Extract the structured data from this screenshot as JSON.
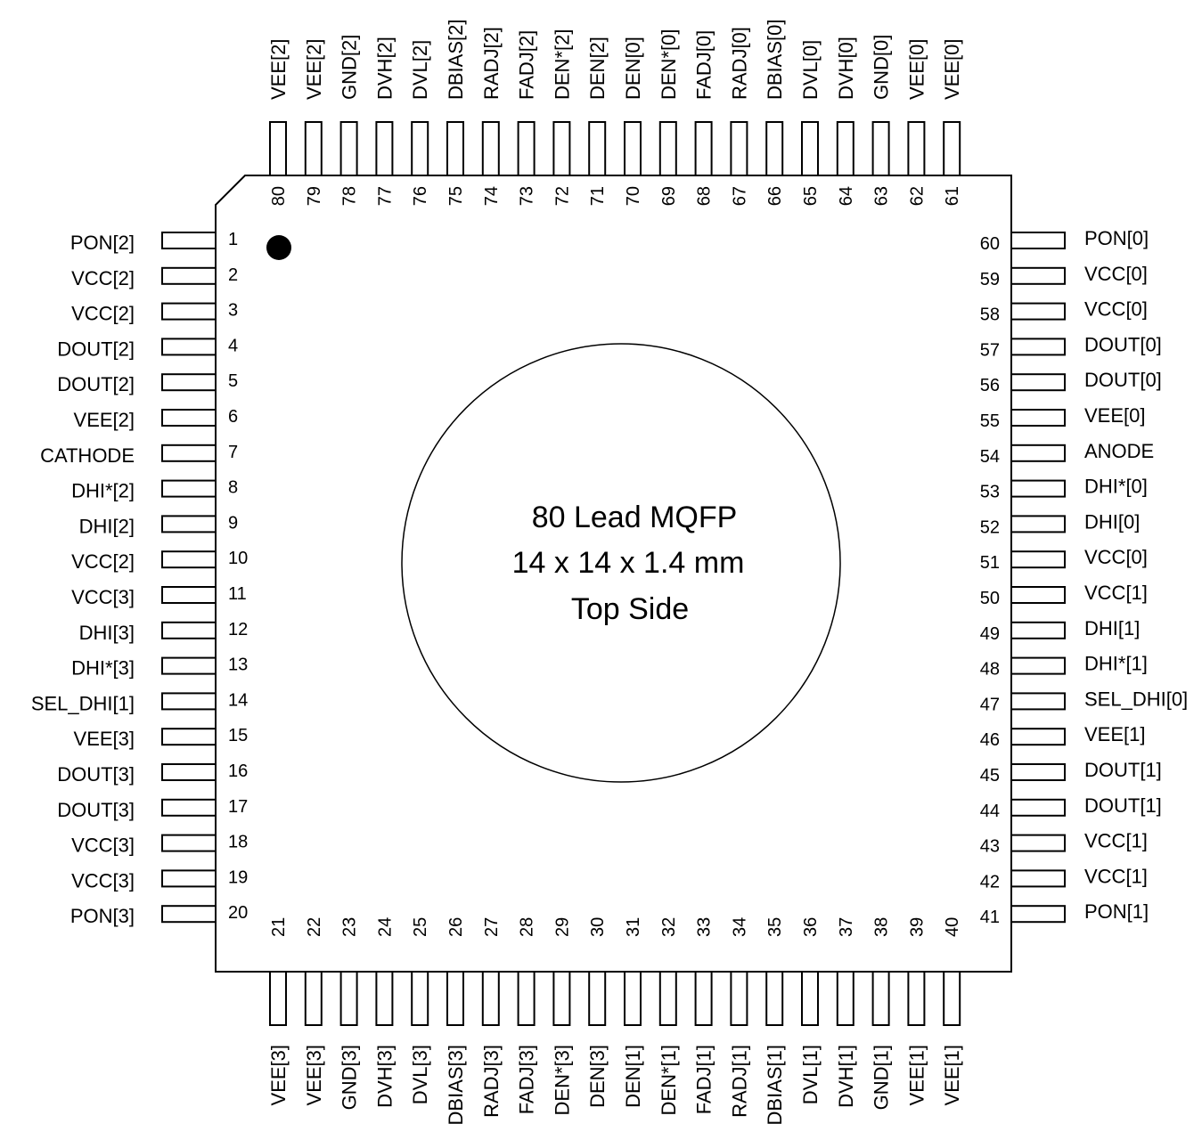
{
  "package": {
    "title_line1": "80 Lead MQFP",
    "title_line2": "14 x 14 x 1.4 mm",
    "title_line3": "Top Side"
  },
  "pins": {
    "left": [
      {
        "n": "1",
        "label": "PON[2]"
      },
      {
        "n": "2",
        "label": "VCC[2]"
      },
      {
        "n": "3",
        "label": "VCC[2]"
      },
      {
        "n": "4",
        "label": "DOUT[2]"
      },
      {
        "n": "5",
        "label": "DOUT[2]"
      },
      {
        "n": "6",
        "label": "VEE[2]"
      },
      {
        "n": "7",
        "label": "CATHODE"
      },
      {
        "n": "8",
        "label": "DHI*[2]"
      },
      {
        "n": "9",
        "label": "DHI[2]"
      },
      {
        "n": "10",
        "label": "VCC[2]"
      },
      {
        "n": "11",
        "label": "VCC[3]"
      },
      {
        "n": "12",
        "label": "DHI[3]"
      },
      {
        "n": "13",
        "label": "DHI*[3]"
      },
      {
        "n": "14",
        "label": "SEL_DHI[1]"
      },
      {
        "n": "15",
        "label": "VEE[3]"
      },
      {
        "n": "16",
        "label": "DOUT[3]"
      },
      {
        "n": "17",
        "label": "DOUT[3]"
      },
      {
        "n": "18",
        "label": "VCC[3]"
      },
      {
        "n": "19",
        "label": "VCC[3]"
      },
      {
        "n": "20",
        "label": "PON[3]"
      }
    ],
    "right": [
      {
        "n": "60",
        "label": "PON[0]"
      },
      {
        "n": "59",
        "label": "VCC[0]"
      },
      {
        "n": "58",
        "label": "VCC[0]"
      },
      {
        "n": "57",
        "label": "DOUT[0]"
      },
      {
        "n": "56",
        "label": "DOUT[0]"
      },
      {
        "n": "55",
        "label": "VEE[0]"
      },
      {
        "n": "54",
        "label": "ANODE"
      },
      {
        "n": "53",
        "label": "DHI*[0]"
      },
      {
        "n": "52",
        "label": "DHI[0]"
      },
      {
        "n": "51",
        "label": "VCC[0]"
      },
      {
        "n": "50",
        "label": "VCC[1]"
      },
      {
        "n": "49",
        "label": "DHI[1]"
      },
      {
        "n": "48",
        "label": "DHI*[1]"
      },
      {
        "n": "47",
        "label": "SEL_DHI[0]"
      },
      {
        "n": "46",
        "label": "VEE[1]"
      },
      {
        "n": "45",
        "label": "DOUT[1]"
      },
      {
        "n": "44",
        "label": "DOUT[1]"
      },
      {
        "n": "43",
        "label": "VCC[1]"
      },
      {
        "n": "42",
        "label": "VCC[1]"
      },
      {
        "n": "41",
        "label": "PON[1]"
      }
    ],
    "top": [
      {
        "n": "80",
        "label": "VEE[2]"
      },
      {
        "n": "79",
        "label": "VEE[2]"
      },
      {
        "n": "78",
        "label": "GND[2]"
      },
      {
        "n": "77",
        "label": "DVH[2]"
      },
      {
        "n": "76",
        "label": "DVL[2]"
      },
      {
        "n": "75",
        "label": "DBIAS[2]"
      },
      {
        "n": "74",
        "label": "RADJ[2]"
      },
      {
        "n": "73",
        "label": "FADJ[2]"
      },
      {
        "n": "72",
        "label": "DEN*[2]"
      },
      {
        "n": "71",
        "label": "DEN[2]"
      },
      {
        "n": "70",
        "label": "DEN[0]"
      },
      {
        "n": "69",
        "label": "DEN*[0]"
      },
      {
        "n": "68",
        "label": "FADJ[0]"
      },
      {
        "n": "67",
        "label": "RADJ[0]"
      },
      {
        "n": "66",
        "label": "DBIAS[0]"
      },
      {
        "n": "65",
        "label": "DVL[0]"
      },
      {
        "n": "64",
        "label": "DVH[0]"
      },
      {
        "n": "63",
        "label": "GND[0]"
      },
      {
        "n": "62",
        "label": "VEE[0]"
      },
      {
        "n": "61",
        "label": "VEE[0]"
      }
    ],
    "bottom": [
      {
        "n": "21",
        "label": "VEE[3]"
      },
      {
        "n": "22",
        "label": "VEE[3]"
      },
      {
        "n": "23",
        "label": "GND[3]"
      },
      {
        "n": "24",
        "label": "DVH[3]"
      },
      {
        "n": "25",
        "label": "DVL[3]"
      },
      {
        "n": "26",
        "label": "DBIAS[3]"
      },
      {
        "n": "27",
        "label": "RADJ[3]"
      },
      {
        "n": "28",
        "label": "FADJ[3]"
      },
      {
        "n": "29",
        "label": "DEN*[3]"
      },
      {
        "n": "30",
        "label": "DEN[3]"
      },
      {
        "n": "31",
        "label": "DEN[1]"
      },
      {
        "n": "32",
        "label": "DEN*[1]"
      },
      {
        "n": "33",
        "label": "FADJ[1]"
      },
      {
        "n": "34",
        "label": "RADJ[1]"
      },
      {
        "n": "35",
        "label": "DBIAS[1]"
      },
      {
        "n": "36",
        "label": "DVL[1]"
      },
      {
        "n": "37",
        "label": "DVH[1]"
      },
      {
        "n": "38",
        "label": "GND[1]"
      },
      {
        "n": "39",
        "label": "VEE[1]"
      },
      {
        "n": "40",
        "label": "VEE[1]"
      }
    ]
  }
}
